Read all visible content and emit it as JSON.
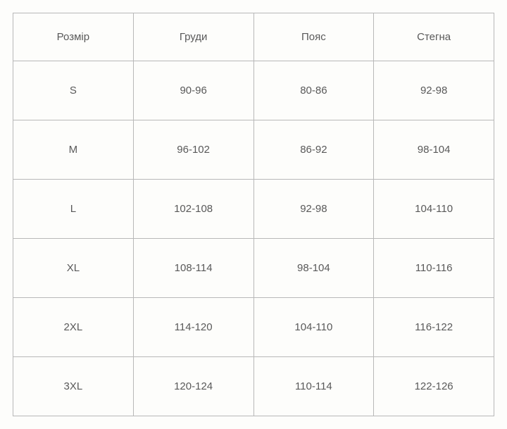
{
  "size_table": {
    "type": "table",
    "columns": [
      "Розмір",
      "Груди",
      "Пояс",
      "Стегна"
    ],
    "rows": [
      [
        "S",
        "90-96",
        "80-86",
        "92-98"
      ],
      [
        "M",
        "96-102",
        "86-92",
        "98-104"
      ],
      [
        "L",
        "102-108",
        "92-98",
        "104-110"
      ],
      [
        "XL",
        "108-114",
        "98-104",
        "110-116"
      ],
      [
        "2XL",
        "114-120",
        "104-110",
        "116-122"
      ],
      [
        "3XL",
        "120-124",
        "110-114",
        "122-126"
      ]
    ],
    "border_color": "#b8b8b8",
    "text_color": "#595959",
    "background_color": "#fdfdfb",
    "font_size": 15,
    "header_row_height": 68,
    "data_row_height": 84,
    "column_count": 4,
    "alignment": "center"
  }
}
